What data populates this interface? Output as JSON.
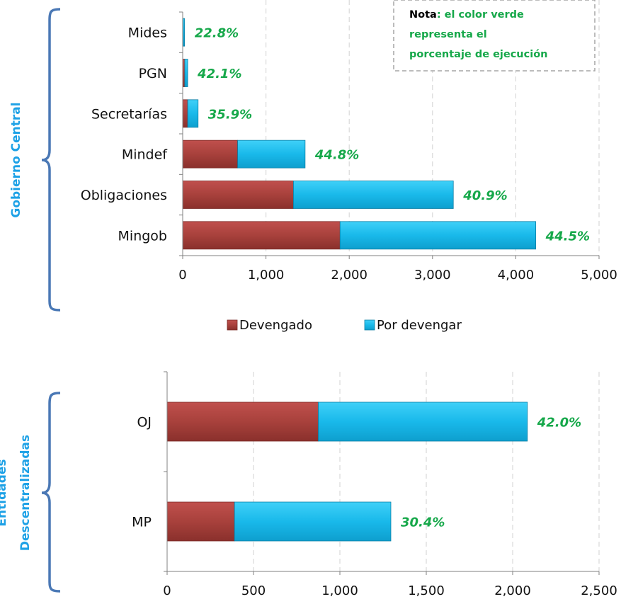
{
  "colors": {
    "devengado": "#a8413c",
    "por_devengar": "#19b9ea",
    "percent": "#16a84a",
    "group_label": "#1da1e6",
    "bracket": "#4a78b5",
    "grid": "#d9d9d9",
    "axis": "#808080",
    "note_border": "#a6a6a6"
  },
  "note": {
    "bold": "Nota",
    "line1_rest": ": el color verde",
    "line2": "representa el",
    "line3": "porcentaje de ejecución"
  },
  "legend": {
    "devengado": "Devengado",
    "por_devengar": "Por devengar"
  },
  "chart_data": [
    {
      "type": "bar",
      "orientation": "horizontal",
      "stacked": true,
      "group_label": "Gobierno Central",
      "categories": [
        "Mides",
        "PGN",
        "Secretarías",
        "Mindef",
        "Obligaciones",
        "Mingob"
      ],
      "series": [
        {
          "name": "Devengado",
          "values": [
            5,
            25,
            60,
            660,
            1330,
            1890
          ]
        },
        {
          "name": "Por devengar",
          "values": [
            18,
            35,
            125,
            810,
            1920,
            2350
          ]
        }
      ],
      "percent_labels": [
        "22.8%",
        "42.1%",
        "35.9%",
        "44.8%",
        "40.9%",
        "44.5%"
      ],
      "xlim": [
        0,
        5000
      ],
      "xticks": [
        0,
        1000,
        2000,
        3000,
        4000,
        5000
      ],
      "xtick_labels": [
        "0",
        "1,000",
        "2,000",
        "3,000",
        "4,000",
        "5,000"
      ],
      "grid": "vertical dashed",
      "legend": "bottom"
    },
    {
      "type": "bar",
      "orientation": "horizontal",
      "stacked": true,
      "group_label_lines": [
        "Entidades",
        "Descentralizadas"
      ],
      "categories": [
        "OJ",
        "MP"
      ],
      "series": [
        {
          "name": "Devengado",
          "values": [
            875,
            390
          ]
        },
        {
          "name": "Por devengar",
          "values": [
            1210,
            905
          ]
        }
      ],
      "percent_labels": [
        "42.0%",
        "30.4%"
      ],
      "xlim": [
        0,
        2500
      ],
      "xticks": [
        0,
        500,
        1000,
        1500,
        2000,
        2500
      ],
      "xtick_labels": [
        "0",
        "500",
        "1,000",
        "1,500",
        "2,000",
        "2,500"
      ],
      "grid": "vertical dashed"
    }
  ]
}
